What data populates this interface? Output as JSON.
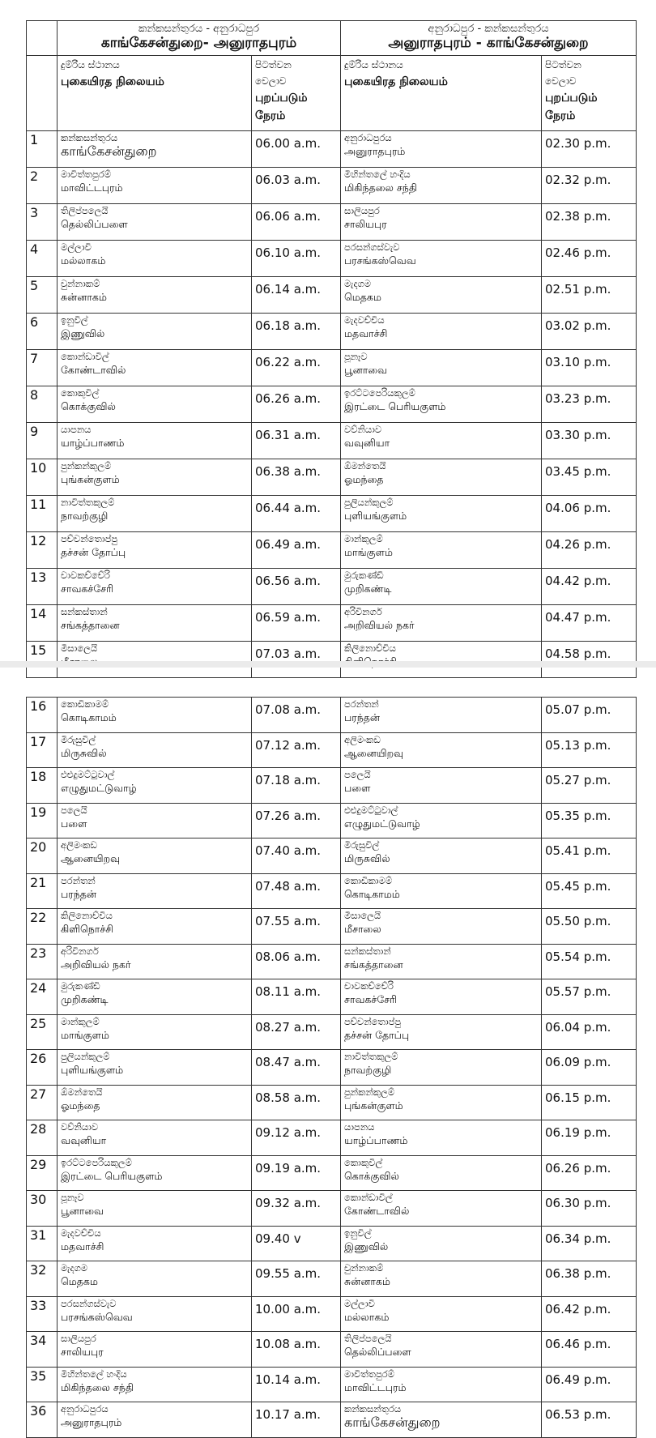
{
  "header": {
    "left": {
      "route_si": "කන්කසන්තුරය - අනුරාධපුර",
      "route_ta": "காங்கேசன்துறை- அனுராதபுரம்",
      "station_si": "දුම්රිය ස්ථානය",
      "station_ta": "புகையிரத நிலையம்",
      "time_si_1": "පිටත්වන",
      "time_si_2": "වෙලාව",
      "time_ta_1": "புறப்படும்",
      "time_ta_2": "நேரம்"
    },
    "right": {
      "route_si": "අනුරාධපුර  - කන්කසන්තුරය",
      "route_ta": "அனுராதபுரம் - காங்கேசன்துறை",
      "station_si": "දුම්රිය ස්ථානය",
      "station_ta": "புகையிரத நிலையம்",
      "time_si_1": "පිටත්වන",
      "time_si_2": "වෙලාව",
      "time_ta_1": "புறப்படும்",
      "time_ta_2": "நேரம்"
    }
  },
  "rows": [
    {
      "no": "1",
      "a_si": "කන්කසන්තුරය",
      "a_ta": "காங்கேசன்துறை",
      "a_time": "06.00 a.m.",
      "b_si": "අනුරාධපුරය",
      "b_ta": "அனுராதபுரம்",
      "b_time": "02.30 p.m."
    },
    {
      "no": "2",
      "a_si": "මාවිත්තපුරම්",
      "a_ta": "மாவிட்டபுரம்",
      "a_time": "06.03 a.m.",
      "b_si": "මිහින්තලේ හංදිය",
      "b_ta": "மிகிந்தலை சந்தி",
      "b_time": "02.32 p.m."
    },
    {
      "no": "3",
      "a_si": "තිලිප්පලෙයි",
      "a_ta": "தெல்லிப்பளை",
      "a_time": "06.06 a.m.",
      "b_si": "සාලියපුර",
      "b_ta": "சாலியபுர",
      "b_time": "02.38 p.m."
    },
    {
      "no": "4",
      "a_si": "මල්ලාවි",
      "a_ta": "மல்லாகம்",
      "a_time": "06.10 a.m.",
      "b_si": "පරසන්ගස්වැව",
      "b_ta": "பரசங்கஸ்வெவ",
      "b_time": "02.46 p.m."
    },
    {
      "no": "5",
      "a_si": "චුන්නාකම්",
      "a_ta": "சுன்னாகம்",
      "a_time": "06.14 a.m.",
      "b_si": "මැදගම",
      "b_ta": "மெதகம",
      "b_time": "02.51 p.m."
    },
    {
      "no": "6",
      "a_si": "ඉනුවිල්",
      "a_ta": "இணுவில்",
      "a_time": "06.18 a.m.",
      "b_si": "මැදවච්චිය",
      "b_ta": "மதவாச்சி",
      "b_time": "03.02 p.m."
    },
    {
      "no": "7",
      "a_si": "කොන්ඩාවිල්",
      "a_ta": "கோண்டாவில்",
      "a_time": "06.22 a.m.",
      "b_si": "පූනෑව",
      "b_ta": "பூனாவை",
      "b_time": "03.10 p.m."
    },
    {
      "no": "8",
      "a_si": "කොකුවිල්",
      "a_ta": "கொக்குவில்",
      "a_time": "06.26 a.m.",
      "b_si": "ඉරට්ටපෙරියකුලම්",
      "b_ta": "இரட்டை பெரியகுளம்",
      "b_time": "03.23 p.m."
    },
    {
      "no": "9",
      "a_si": "යාපනය",
      "a_ta": "யாழ்ப்பாணம்",
      "a_time": "06.31 a.m.",
      "b_si": "වව්නියාව",
      "b_ta": "வவுனியா",
      "b_time": "03.30 p.m."
    },
    {
      "no": "10",
      "a_si": "පුන්කන්කුලම්",
      "a_ta": "புங்கன்குளம்",
      "a_time": "06.38 a.m.",
      "b_si": "ඕමන්තෙයි",
      "b_ta": "ஓமந்தை",
      "b_time": "03.45 p.m."
    },
    {
      "no": "11",
      "a_si": "නාවිත්තකුලම්",
      "a_ta": "நாவற்குழி",
      "a_time": "06.44 a.m.",
      "b_si": "පුලියන්කුලම්",
      "b_ta": "புளியங்குளம்",
      "b_time": "04.06 p.m."
    },
    {
      "no": "12",
      "a_si": "පච්චන්තොප්පු",
      "a_ta": "தச்சன் தோப்பு",
      "a_time": "06.49 a.m.",
      "b_si": "මාන්කුලම්",
      "b_ta": "மாங்குளம்",
      "b_time": "04.26 p.m."
    },
    {
      "no": "13",
      "a_si": "චාවකච්චේරි",
      "a_ta": "சாவகச்சேரி",
      "a_time": "06.56 a.m.",
      "b_si": "මුරුකණ්ඩි",
      "b_ta": "முறிகண்டி",
      "b_time": "04.42 p.m."
    },
    {
      "no": "14",
      "a_si": "සන්කස්තාන්",
      "a_ta": "சங்கத்தானை",
      "a_time": "06.59 a.m.",
      "b_si": "අරිවිනගර්",
      "b_ta": "அறிவியல் நகர்",
      "b_time": "04.47 p.m."
    },
    {
      "no": "15",
      "a_si": "මීසාලෙයි",
      "a_ta": "மீசாலை",
      "a_time": "07.03 a.m.",
      "b_si": "කිලිනොච්චිය",
      "b_ta": "கிளிநொச்சி",
      "b_time": "04.58 p.m."
    },
    {
      "no": "16",
      "a_si": "කොඩිකාමම්",
      "a_ta": "கொடிகாமம்",
      "a_time": "07.08 a.m.",
      "b_si": "පරන්තන්",
      "b_ta": "பரந்தன்",
      "b_time": "05.07 p.m."
    },
    {
      "no": "17",
      "a_si": "මිරුසුවිල්",
      "a_ta": "மிருசுவில்",
      "a_time": "07.12 a.m.",
      "b_si": "අලිමංකඩ",
      "b_ta": "ஆனையிறவு",
      "b_time": "05.13 p.m."
    },
    {
      "no": "18",
      "a_si": "එළුදුමට්ටුවාල්",
      "a_ta": "எழுதுமட்டுவாழ்",
      "a_time": "07.18 a.m.",
      "b_si": "පලෙයි",
      "b_ta": "பளை",
      "b_time": "05.27 p.m."
    },
    {
      "no": "19",
      "a_si": "පලෙයි",
      "a_ta": "பளை",
      "a_time": "07.26 a.m.",
      "b_si": "එළුදුමට්ටුවාල්",
      "b_ta": "எழுதுமட்டுவாழ்",
      "b_time": "05.35 p.m."
    },
    {
      "no": "20",
      "a_si": "අලිමංකඩ",
      "a_ta": "ஆனையிறவு",
      "a_time": "07.40 a.m.",
      "b_si": "මිරුසුවිල්",
      "b_ta": "மிருசுவில்",
      "b_time": "05.41 p.m."
    },
    {
      "no": "21",
      "a_si": "පරන්තන්",
      "a_ta": "பரந்தன்",
      "a_time": "07.48 a.m.",
      "b_si": "කොඩිකාමම්",
      "b_ta": "கொடிகாமம்",
      "b_time": "05.45 p.m."
    },
    {
      "no": "22",
      "a_si": "කිලිනොච්චිය",
      "a_ta": "கிளிநொச்சி",
      "a_time": "07.55 a.m.",
      "b_si": "මීසාලෙයි",
      "b_ta": "மீசாலை",
      "b_time": "05.50 p.m."
    },
    {
      "no": "23",
      "a_si": "අරිවිනගර්",
      "a_ta": "அறிவியல் நகர்",
      "a_time": "08.06 a.m.",
      "b_si": "සන්කස්තාන්",
      "b_ta": "சங்கத்தானை",
      "b_time": "05.54 p.m."
    },
    {
      "no": "24",
      "a_si": "මුරුකණ්ඩි",
      "a_ta": "முறிகண்டி",
      "a_time": "08.11 a.m.",
      "b_si": "චාවකච්චේරි",
      "b_ta": "சாவகச்சேரி",
      "b_time": "05.57 p.m."
    },
    {
      "no": "25",
      "a_si": "මාන්කුලම්",
      "a_ta": "மாங்குளம்",
      "a_time": "08.27 a.m.",
      "b_si": "පච්චන්තොප්පු",
      "b_ta": "தச்சன் தோப்பு",
      "b_time": "06.04 p.m."
    },
    {
      "no": "26",
      "a_si": "පුලියන්කුලම්",
      "a_ta": "புளியங்குளம்",
      "a_time": "08.47 a.m.",
      "b_si": "නාවිත්තකුලම්",
      "b_ta": "நாவற்குழி",
      "b_time": "06.09 p.m."
    },
    {
      "no": "27",
      "a_si": "ඕමන්තෙයි",
      "a_ta": "ஓமந்தை",
      "a_time": "08.58 a.m.",
      "b_si": "පුන්කන්කුලම්",
      "b_ta": "புங்கன்குளம்",
      "b_time": "06.15 p.m."
    },
    {
      "no": "28",
      "a_si": "වව්නියාව",
      "a_ta": "வவுனியா",
      "a_time": "09.12 a.m.",
      "b_si": "යාපනය",
      "b_ta": "யாழ்ப்பாணம்",
      "b_time": "06.19 p.m."
    },
    {
      "no": "29",
      "a_si": "ඉරට්ටපෙරියකුලම්",
      "a_ta": "இரட்டை பெரியகுளம்",
      "a_time": "09.19 a.m.",
      "b_si": "කොකුවිල්",
      "b_ta": "கொக்குவில்",
      "b_time": "06.26 p.m."
    },
    {
      "no": "30",
      "a_si": "පූනෑව",
      "a_ta": "பூனாவை",
      "a_time": "09.32 a.m.",
      "b_si": "කොන්ඩාවිල්",
      "b_ta": "கோண்டாவில்",
      "b_time": "06.30 p.m."
    },
    {
      "no": "31",
      "a_si": "මැදවච්චිය",
      "a_ta": "மதவாச்சி",
      "a_time": "09.40 v",
      "b_si": "ඉනුවිල්",
      "b_ta": "இணுவில்",
      "b_time": "06.34 p.m."
    },
    {
      "no": "32",
      "a_si": "මැදගම",
      "a_ta": "மெதகம",
      "a_time": "09.55 a.m.",
      "b_si": "චුන්නාකම්",
      "b_ta": "சுன்னாகம்",
      "b_time": "06.38 p.m."
    },
    {
      "no": "33",
      "a_si": "පරසන්ගස්වැව",
      "a_ta": "பரசங்கஸ்வெவ",
      "a_time": "10.00 a.m.",
      "b_si": "මල්ලාවි",
      "b_ta": "மல்லாகம்",
      "b_time": "06.42 p.m."
    },
    {
      "no": "34",
      "a_si": "සාලියපුර",
      "a_ta": "சாலியபுர",
      "a_time": "10.08 a.m.",
      "b_si": "තිලිප්පලෙයි",
      "b_ta": "தெல்லிப்பளை",
      "b_time": "06.46 p.m."
    },
    {
      "no": "35",
      "a_si": "මිහින්තලේ හංදිය",
      "a_ta": "மிகிந்தலை சந்தி",
      "a_time": "10.14 a.m.",
      "b_si": "මාවිත්තපුරම්",
      "b_ta": "மாவிட்டபுரம்",
      "b_time": "06.49 p.m."
    },
    {
      "no": "36",
      "a_si": "අනුරාධපුරය",
      "a_ta": "அனுராதபுரம்",
      "a_time": "10.17 a.m.",
      "b_si": "කන්කසන්තුරය",
      "b_ta": "காங்கேசன்துறை",
      "b_time": "06.53 p.m."
    }
  ]
}
